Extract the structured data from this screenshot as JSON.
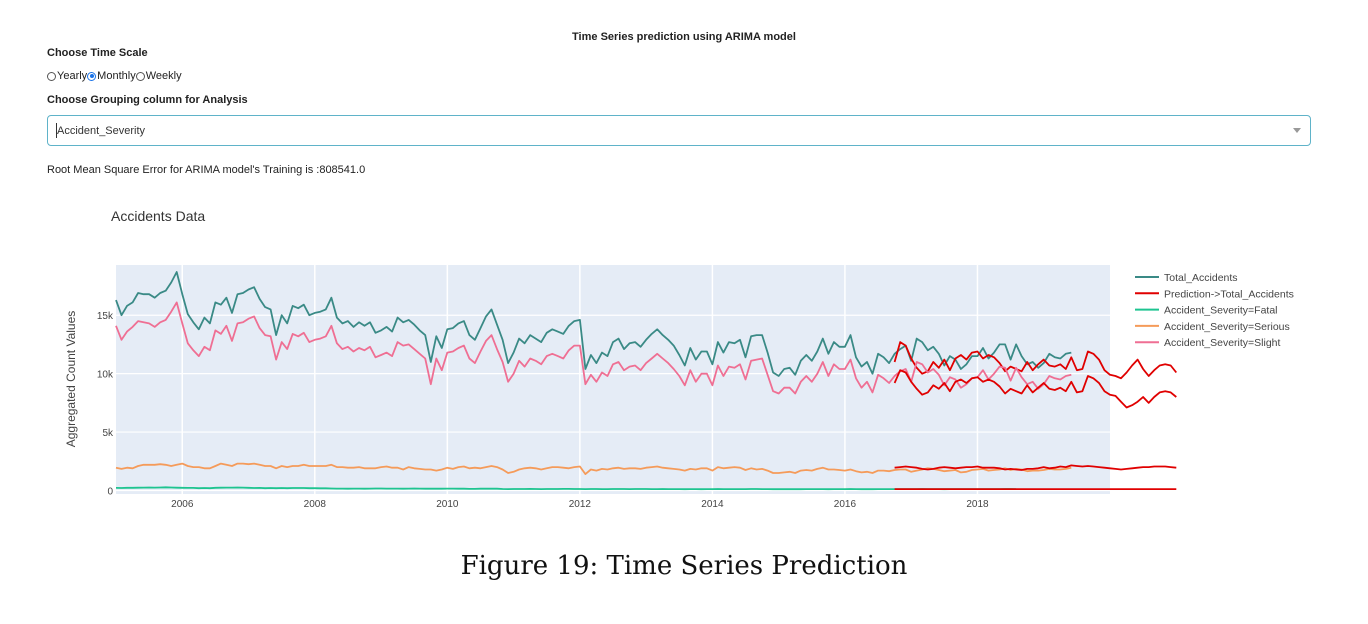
{
  "app": {
    "title": "Time Series prediction using ARIMA model",
    "time_scale_heading": "Choose Time Scale",
    "time_scale_options": [
      {
        "label": "Yearly",
        "checked": false
      },
      {
        "label": "Monthly",
        "checked": true
      },
      {
        "label": "Weekly",
        "checked": false
      }
    ],
    "grouping_heading": "Choose Grouping column for Analysis",
    "grouping_value": "Accident_Severity",
    "rmse_text": "Root Mean Square Error for ARIMA model's Training is :808541.0",
    "caption": "Figure 19: Time Series Prediction"
  },
  "colors": {
    "plot_bg": "#e5ecf6",
    "Total_Accidents": "#3a8a86",
    "Prediction->Total_Accidents": "#e00000",
    "Accident_Severity=Fatal": "#1ec490",
    "Accident_Severity=Serious": "#f59b5a",
    "Accident_Severity=Slight": "#ef6f93",
    "select_border": "#5fb3c9",
    "radio_accent": "#1a73e8"
  },
  "chart_data": {
    "type": "line",
    "title": "Accidents Data",
    "xlabel": "",
    "ylabel": "Aggregated Count Values",
    "xlim": [
      2005.0,
      2020.0
    ],
    "ylim": [
      -300,
      19300
    ],
    "x_ticks": [
      2006,
      2008,
      2010,
      2012,
      2014,
      2016,
      2018
    ],
    "x_tick_labels": [
      "2006",
      "2008",
      "2010",
      "2012",
      "2014",
      "2016",
      "2018"
    ],
    "y_ticks": [
      0,
      5000,
      10000,
      15000
    ],
    "y_tick_labels": [
      "0",
      "5k",
      "10k",
      "15k"
    ],
    "grid": true,
    "legend_position": "right",
    "x_step": "monthly",
    "series": [
      {
        "name": "Total_Accidents",
        "x_start": 2005.0,
        "values": [
          16300,
          15000,
          15800,
          16100,
          16900,
          16800,
          16800,
          16500,
          16900,
          17100,
          17800,
          18700,
          16800,
          15100,
          14400,
          13800,
          14800,
          14300,
          16100,
          15900,
          16500,
          15200,
          16800,
          16900,
          17200,
          17400,
          16400,
          15700,
          15500,
          13300,
          15000,
          14300,
          15800,
          15600,
          15900,
          15000,
          15200,
          15300,
          15500,
          16500,
          14800,
          14300,
          14500,
          14000,
          14400,
          14100,
          14400,
          13500,
          13700,
          14000,
          13600,
          14800,
          14400,
          14600,
          14200,
          13700,
          13300,
          11000,
          13200,
          12200,
          13800,
          13900,
          14300,
          14500,
          13300,
          12900,
          13900,
          14900,
          15500,
          14200,
          12900,
          10900,
          11800,
          13000,
          12600,
          13300,
          13000,
          12700,
          13500,
          13800,
          13600,
          13400,
          14100,
          14500,
          14600,
          10400,
          11600,
          10900,
          11800,
          11500,
          12700,
          13000,
          12100,
          12600,
          12700,
          12300,
          12900,
          13400,
          13800,
          13300,
          12900,
          12400,
          11600,
          10700,
          12200,
          11200,
          11900,
          11900,
          10800,
          12700,
          11800,
          12700,
          12600,
          12900,
          11400,
          13200,
          13300,
          13300,
          11800,
          10100,
          9800,
          10400,
          10500,
          9900,
          11100,
          11600,
          11100,
          11900,
          13000,
          11700,
          12700,
          12300,
          12300,
          13300,
          11400,
          10600,
          11000,
          10000,
          11700,
          11400,
          10900,
          11700,
          12100,
          12400,
          11100,
          13000,
          12700,
          12000,
          12300,
          11700,
          10700,
          11500,
          11200,
          10400,
          10800,
          11500,
          11500,
          12200,
          11300,
          11800,
          12500,
          12500,
          11200,
          12500,
          11500,
          10800,
          11000,
          10500,
          10900,
          11700,
          11400,
          11300,
          11700,
          11800
        ],
        "color": "#3a8a86"
      },
      {
        "name": "Prediction->Total_Accidents",
        "x_start": 2016.75,
        "values": [
          11000,
          12700,
          12400,
          11300,
          10500,
          10000,
          10200,
          11000,
          10500,
          11200,
          10300,
          11300,
          11600,
          11200,
          11800,
          11900,
          11300,
          11600,
          11400,
          10900,
          10200,
          10600,
          10400,
          10200,
          11000,
          10300,
          10800,
          11200,
          10700,
          10600,
          10800,
          10400,
          11400,
          10300,
          10400,
          11900,
          11700,
          11200,
          10300,
          9900,
          9800,
          9600,
          10100,
          10700,
          11200,
          10400,
          9800,
          10300,
          10700,
          10800,
          10700,
          10100
        ],
        "color": "#e00000"
      },
      {
        "name": "Accident_Severity=Fatal",
        "x_start": 2005.0,
        "values": [
          220,
          210,
          230,
          230,
          240,
          250,
          260,
          250,
          260,
          270,
          260,
          240,
          230,
          220,
          220,
          200,
          210,
          200,
          230,
          240,
          250,
          250,
          260,
          250,
          230,
          210,
          220,
          200,
          210,
          200,
          210,
          200,
          210,
          210,
          210,
          200,
          200,
          190,
          190,
          170,
          160,
          160,
          150,
          160,
          160,
          150,
          160,
          170,
          170,
          160,
          160,
          160,
          150,
          160,
          170,
          160,
          150,
          150,
          160,
          150,
          160,
          160,
          150,
          150,
          140,
          140,
          150,
          150,
          160,
          150,
          130,
          120,
          130,
          130,
          130,
          140,
          130,
          120,
          130,
          130,
          130,
          140,
          140,
          130,
          130,
          120,
          130,
          130,
          120,
          120,
          130,
          130,
          130,
          120,
          130,
          130,
          130,
          120,
          120,
          130,
          120,
          120,
          120,
          110,
          120,
          120,
          110,
          120,
          120,
          130,
          120,
          120,
          120,
          120,
          120,
          130,
          130,
          120,
          120,
          110,
          110,
          120,
          110,
          110,
          110,
          120,
          120,
          120,
          120,
          110,
          120,
          120,
          120,
          130,
          120,
          110,
          110,
          110,
          120,
          120,
          120,
          120,
          120,
          120,
          120,
          120,
          130,
          120,
          120,
          120,
          110,
          120,
          120,
          120,
          120,
          120,
          120,
          120,
          120,
          120,
          120,
          130,
          130,
          120
        ],
        "color": "#1ec490"
      },
      {
        "name": "Accident_Severity=Serious",
        "x_start": 2005.0,
        "values": [
          1950,
          1850,
          1950,
          1900,
          2100,
          2200,
          2200,
          2200,
          2250,
          2200,
          2100,
          2200,
          2300,
          2100,
          2000,
          2000,
          1900,
          1900,
          2100,
          2300,
          2200,
          2100,
          2300,
          2300,
          2250,
          2300,
          2200,
          2100,
          2100,
          1900,
          2100,
          2000,
          2100,
          2100,
          2200,
          2100,
          2100,
          2100,
          2100,
          2200,
          2000,
          2000,
          1950,
          1950,
          2000,
          1900,
          1900,
          1900,
          2000,
          2050,
          1950,
          1950,
          1800,
          2000,
          1900,
          1850,
          1800,
          1800,
          1700,
          1800,
          1950,
          1850,
          2000,
          2050,
          1900,
          1950,
          1900,
          2000,
          2100,
          2000,
          1800,
          1500,
          1600,
          1800,
          1900,
          1950,
          1900,
          1800,
          1900,
          2000,
          2000,
          1950,
          1900,
          2000,
          2050,
          1400,
          1800,
          1700,
          1850,
          1800,
          1900,
          1950,
          1850,
          1900,
          1900,
          1850,
          1950,
          2000,
          2050,
          1950,
          1900,
          1850,
          1800,
          1700,
          1850,
          1800,
          1900,
          1900,
          1700,
          2000,
          1900,
          1950,
          2000,
          1950,
          1750,
          1900,
          1800,
          1850,
          1700,
          1500,
          1500,
          1550,
          1600,
          1500,
          1700,
          1750,
          1700,
          1850,
          1950,
          1800,
          1800,
          1750,
          1700,
          1800,
          1650,
          1550,
          1600,
          1500,
          1700,
          1700,
          1650,
          1750,
          1800,
          1800,
          1600,
          1700,
          1800,
          1900,
          1850,
          1750,
          1650,
          1700,
          1750,
          1550,
          1600,
          1750,
          1800,
          1850,
          1700,
          1750,
          1800,
          1900,
          1750,
          1850,
          1800,
          1650,
          1700,
          1700,
          1750,
          1850,
          1800,
          1800,
          1850,
          1950
        ],
        "color": "#f59b5a"
      },
      {
        "name": "Accident_Severity=Slight",
        "x_start": 2005.0,
        "values": [
          14100,
          12900,
          13600,
          14000,
          14500,
          14400,
          14300,
          14000,
          14400,
          14600,
          15300,
          16100,
          14300,
          12600,
          12000,
          11500,
          12300,
          12000,
          13700,
          13400,
          14100,
          12800,
          14300,
          14400,
          14700,
          14900,
          13900,
          13300,
          13200,
          11200,
          12700,
          12100,
          13400,
          13200,
          13500,
          12700,
          12900,
          13000,
          13200,
          14100,
          12600,
          12100,
          12300,
          11900,
          12200,
          12000,
          12300,
          11400,
          11600,
          11800,
          11500,
          12700,
          12400,
          12500,
          12100,
          11700,
          11300,
          9100,
          11300,
          10300,
          11800,
          11900,
          12200,
          12400,
          11300,
          10900,
          11900,
          12800,
          13300,
          12100,
          11000,
          9300,
          10000,
          11100,
          10600,
          11300,
          11100,
          10800,
          11500,
          11700,
          11500,
          11300,
          12000,
          12400,
          12400,
          9100,
          9900,
          9300,
          10100,
          9800,
          10800,
          11000,
          10300,
          10600,
          10700,
          10300,
          10900,
          11300,
          11700,
          11300,
          10900,
          10400,
          9800,
          9000,
          10300,
          9300,
          10000,
          10000,
          9000,
          10700,
          9800,
          10600,
          10500,
          10800,
          9500,
          11100,
          11200,
          11300,
          9900,
          8500,
          8300,
          8800,
          8800,
          8300,
          9300,
          9800,
          9300,
          10000,
          11000,
          9800,
          10800,
          10400,
          10400,
          11200,
          9600,
          8800,
          9300,
          8400,
          9900,
          9600,
          9200,
          9800,
          10200,
          10400,
          9300,
          11000,
          10800,
          10100,
          10400,
          9900,
          9000,
          9700,
          9500,
          8800,
          9100,
          9600,
          9700,
          10300,
          9500,
          10000,
          10600,
          10500,
          9400,
          10500,
          9700,
          9100,
          9300,
          8700,
          9100,
          9800,
          9600,
          9500,
          9800,
          9900
        ],
        "color": "#ef6f93"
      },
      {
        "name": "Prediction->Total_Accidents (lower)",
        "legend": false,
        "x_start": 2016.75,
        "values": [
          9200,
          10300,
          10100,
          9300,
          8700,
          8200,
          8400,
          9000,
          8700,
          9200,
          8500,
          9300,
          9500,
          9200,
          9600,
          9700,
          9300,
          9500,
          9300,
          8900,
          8300,
          8700,
          8500,
          8300,
          9000,
          8400,
          8800,
          9200,
          8700,
          8600,
          8800,
          8500,
          9300,
          8400,
          8500,
          9800,
          9600,
          9200,
          8500,
          8200,
          8100,
          7600,
          7100,
          7300,
          7600,
          8000,
          7500,
          8000,
          8400,
          8500,
          8400,
          8000
        ],
        "color": "#e00000"
      },
      {
        "name": "Prediction->Total_Accidents (serious)",
        "legend": false,
        "x_start": 2016.75,
        "values": [
          1950,
          2000,
          2050,
          2000,
          1950,
          1850,
          1800,
          1850,
          1950,
          2000,
          1950,
          1900,
          1950,
          2000,
          2000,
          2050,
          1950,
          1950,
          1950,
          1900,
          1800,
          1850,
          1800,
          1750,
          1850,
          1850,
          1900,
          2000,
          1900,
          1950,
          2050,
          2000,
          2150,
          2100,
          2050,
          2100,
          2050,
          2000,
          1950,
          1900,
          1850,
          1800,
          1850,
          1900,
          1950,
          2000,
          2000,
          2050,
          2050,
          2050,
          2000,
          1950
        ],
        "color": "#e00000"
      },
      {
        "name": "Prediction->Total_Accidents (fatal)",
        "legend": false,
        "x_start": 2016.75,
        "values": [
          120,
          120,
          120,
          120,
          120,
          120,
          120,
          120,
          120,
          120,
          120,
          120,
          120,
          120,
          120,
          120,
          120,
          120,
          120,
          120,
          120,
          120,
          120,
          120,
          120,
          120,
          120,
          120,
          120,
          120,
          120,
          120,
          120,
          120,
          120,
          120,
          120,
          120,
          120,
          120,
          120,
          120,
          120,
          120,
          120,
          120,
          120,
          120,
          120,
          120,
          120,
          120
        ],
        "color": "#e00000"
      }
    ],
    "legend": [
      "Total_Accidents",
      "Prediction->Total_Accidents",
      "Accident_Severity=Fatal",
      "Accident_Severity=Serious",
      "Accident_Severity=Slight"
    ]
  }
}
